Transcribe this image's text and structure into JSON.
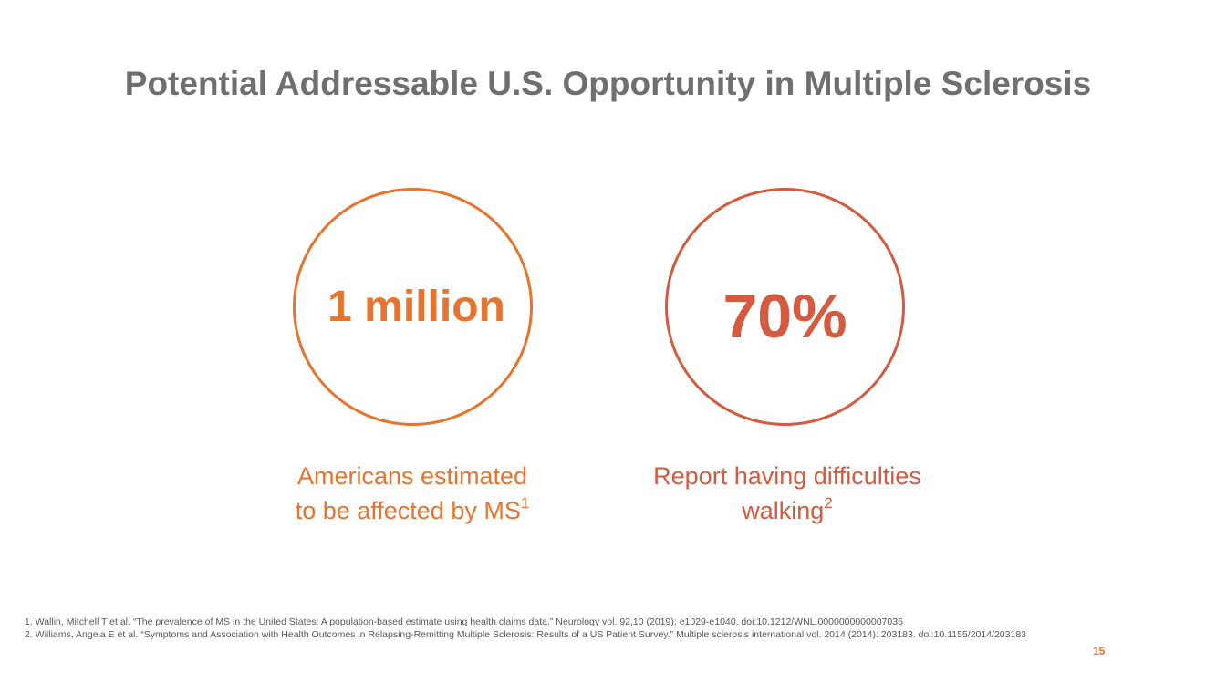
{
  "slide": {
    "title": "Potential Addressable U.S. Opportunity in Multiple Sclerosis",
    "page_number": "15"
  },
  "stats": [
    {
      "value": "1 million",
      "caption_line1": "Americans estimated",
      "caption_line2": "to be affected by MS",
      "footnote_ref": "1",
      "color": "#e6742f"
    },
    {
      "value": "70%",
      "caption_line1": "Report having difficulties",
      "caption_line2": "walking",
      "footnote_ref": "2",
      "color": "#d45a40"
    }
  ],
  "footnotes": [
    "1. Wallin, Mitchell T et al. “The prevalence of MS in the United States: A population-based estimate using health claims data.” Neurology vol. 92,10 (2019): e1029-e1040. doi:10.1212/WNL.0000000000007035",
    "2. Williams, Angela E et al. “Symptoms and Association with Health Outcomes in Relapsing-Remitting Multiple Sclerosis: Results of a US Patient Survey.” Multiple sclerosis international vol. 2014 (2014): 203183. doi:10.1155/2014/203183"
  ],
  "colors": {
    "title": "#6f6f70",
    "accent_orange": "#e6742f",
    "accent_red": "#d45a40",
    "footnote_text": "#595959"
  }
}
